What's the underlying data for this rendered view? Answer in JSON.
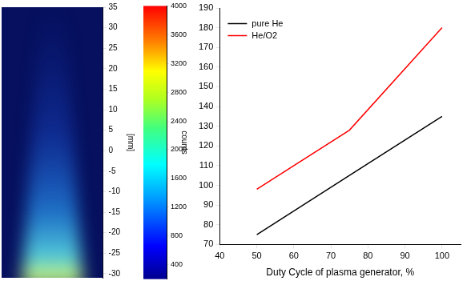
{
  "chart_data": [
    {
      "type": "image",
      "ylabel": "[mm]",
      "ylim": [
        -31,
        35
      ],
      "yticks": [
        -30,
        -25,
        -20,
        -15,
        -10,
        -5,
        0,
        5,
        10,
        15,
        20,
        25,
        30,
        35
      ],
      "colorbar": {
        "label": "counts",
        "range": [
          200,
          4000
        ],
        "ticks": [
          400,
          800,
          1200,
          1600,
          2000,
          2400,
          2800,
          3200,
          3600,
          4000
        ]
      }
    },
    {
      "type": "line",
      "xlabel": "Duty Cycle of plasma generator, %",
      "x": [
        50,
        75,
        100
      ],
      "series": [
        {
          "name": "pure He",
          "color": "#000000",
          "values": [
            75,
            105,
            135
          ]
        },
        {
          "name": "He/O2",
          "color": "#ff0000",
          "values": [
            98,
            128,
            180
          ]
        }
      ],
      "xlim": [
        40,
        105
      ],
      "xticks": [
        40,
        50,
        60,
        70,
        80,
        90,
        100
      ],
      "ylim": [
        70,
        190
      ],
      "yticks": [
        70,
        80,
        90,
        100,
        110,
        120,
        130,
        140,
        150,
        160,
        170,
        180,
        190
      ],
      "grid": false,
      "legend": "top-left"
    }
  ]
}
